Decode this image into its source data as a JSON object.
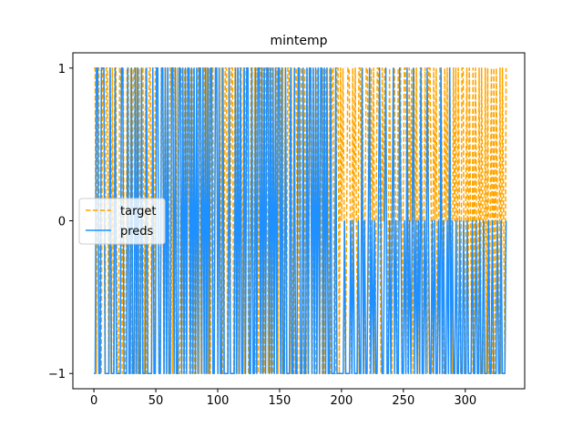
{
  "chart_data": {
    "type": "line",
    "title": "mintemp",
    "xlabel": "",
    "ylabel": "",
    "xlim": [
      -17,
      348
    ],
    "ylim": [
      -1.1,
      1.1
    ],
    "xticks": [
      0,
      50,
      100,
      150,
      200,
      250,
      300
    ],
    "yticks": [
      -1,
      0,
      1
    ],
    "grid": false,
    "legend_position": "center-left",
    "x_start": 0,
    "x_end": 333,
    "series": [
      {
        "name": "target",
        "color": "#ffa500",
        "style": "dashed",
        "values": [
          1,
          1,
          -1,
          1,
          1,
          -1,
          -1,
          1,
          1,
          -1,
          1,
          1,
          -1,
          1,
          -1,
          1,
          -1,
          1,
          1,
          -1,
          -1,
          1,
          1,
          -1,
          1,
          -1,
          -1,
          1,
          1,
          -1,
          1,
          -1,
          1,
          1,
          -1,
          1,
          -1,
          1,
          -1,
          1,
          1,
          -1,
          1,
          -1,
          -1,
          1,
          1,
          -1,
          1,
          -1,
          1,
          1,
          1,
          -1,
          -1,
          1,
          1,
          -1,
          1,
          -1,
          1,
          -1,
          1,
          1,
          -1,
          1,
          1,
          -1,
          1,
          -1,
          -1,
          1,
          1,
          -1,
          1,
          -1,
          1,
          1,
          -1,
          1,
          -1,
          1,
          -1,
          -1,
          1,
          1,
          -1,
          1,
          -1,
          1,
          1,
          -1,
          1,
          -1,
          1,
          -1,
          1,
          1,
          -1,
          1,
          1,
          -1,
          1,
          -1,
          1,
          -1,
          -1,
          1,
          1,
          -1,
          1,
          -1,
          1,
          1,
          -1,
          1,
          -1,
          1,
          -1,
          1,
          1,
          -1,
          1,
          -1,
          1,
          1,
          -1,
          -1,
          1,
          1,
          -1,
          1,
          -1,
          1,
          -1,
          1,
          1,
          -1,
          1,
          -1,
          1,
          1,
          -1,
          1,
          -1,
          1,
          -1,
          -1,
          1,
          1,
          -1,
          1,
          1,
          -1,
          1,
          -1,
          1,
          -1,
          1,
          1,
          -1,
          1,
          -1,
          -1,
          1,
          1,
          -1,
          1,
          -1,
          1,
          1,
          -1,
          1,
          -1,
          1,
          -1,
          1,
          1,
          -1,
          1,
          -1,
          -1,
          1,
          1,
          -1,
          1,
          -1,
          1,
          -1,
          1,
          1,
          -1,
          1,
          -1,
          1,
          1,
          -1,
          -1,
          1,
          1,
          -1,
          1,
          0,
          1,
          0,
          -1,
          0,
          1,
          1,
          0,
          -1,
          1,
          0,
          1,
          0,
          -1,
          1,
          1,
          0,
          1,
          -1,
          0,
          1,
          1,
          0,
          -1,
          1,
          0,
          1,
          -1,
          0,
          1,
          1,
          0,
          -1,
          1,
          0,
          1,
          1,
          -1,
          0,
          1,
          0,
          -1,
          1,
          1,
          0,
          -1,
          1,
          0,
          1,
          -1,
          0,
          1,
          1,
          0,
          -1,
          1,
          0,
          1,
          -1,
          1,
          0,
          1,
          -1,
          0,
          1,
          1,
          -1,
          0,
          1,
          0,
          -1,
          1,
          1,
          0,
          -1,
          1,
          0,
          1,
          -1,
          0,
          1,
          1,
          0,
          -1,
          1,
          0,
          1,
          -1,
          1,
          0,
          -1,
          1,
          0,
          1,
          -1,
          1,
          0,
          -1,
          1,
          1,
          -1,
          0,
          1,
          -1,
          1,
          0,
          -1,
          1,
          -1,
          1,
          0,
          -1,
          1,
          -1,
          1,
          0,
          -1,
          1,
          -1,
          1,
          -1,
          0,
          1,
          -1,
          1,
          -1,
          1,
          0,
          -1,
          1,
          -1,
          1,
          0,
          -1,
          1
        ]
      },
      {
        "name": "preds",
        "color": "#1e90ff",
        "style": "solid",
        "values": [
          -1,
          -1,
          1,
          1,
          -1,
          -1,
          1,
          1,
          1,
          -1,
          -1,
          -1,
          -1,
          1,
          -1,
          -1,
          -1,
          1,
          -1,
          -1,
          -1,
          -1,
          1,
          1,
          -1,
          -1,
          -1,
          1,
          -1,
          -1,
          1,
          -1,
          -1,
          1,
          -1,
          1,
          -1,
          -1,
          1,
          -1,
          -1,
          -1,
          1,
          -1,
          -1,
          -1,
          -1,
          1,
          -1,
          -1,
          1,
          1,
          -1,
          -1,
          1,
          1,
          -1,
          1,
          -1,
          1,
          -1,
          -1,
          1,
          1,
          -1,
          1,
          -1,
          -1,
          1,
          1,
          -1,
          1,
          -1,
          1,
          -1,
          1,
          1,
          -1,
          1,
          -1,
          1,
          -1,
          1,
          -1,
          1,
          1,
          -1,
          1,
          -1,
          1,
          -1,
          1,
          -1,
          1,
          1,
          -1,
          -1,
          1,
          1,
          -1,
          1,
          -1,
          -1,
          1,
          -1,
          -1,
          -1,
          -1,
          1,
          -1,
          -1,
          -1,
          -1,
          1,
          -1,
          1,
          -1,
          1,
          -1,
          -1,
          1,
          -1,
          1,
          1,
          -1,
          -1,
          1,
          -1,
          -1,
          1,
          -1,
          1,
          1,
          -1,
          1,
          -1,
          1,
          -1,
          1,
          1,
          -1,
          1,
          -1,
          1,
          -1,
          1,
          -1,
          1,
          1,
          -1,
          1,
          -1,
          -1,
          1,
          -1,
          -1,
          -1,
          1,
          -1,
          -1,
          1,
          -1,
          -1,
          1,
          1,
          -1,
          -1,
          1,
          -1,
          -1,
          1,
          -1,
          1,
          1,
          -1,
          1,
          -1,
          1,
          -1,
          1,
          -1,
          1,
          1,
          -1,
          1,
          -1,
          1,
          -1,
          -1,
          1,
          -1,
          -1,
          -1,
          1,
          -1,
          -1,
          -1,
          -1,
          -1,
          -1,
          0,
          -1,
          -1,
          -1,
          -1,
          0,
          -1,
          0,
          -1,
          -1,
          -1,
          0,
          -1,
          -1,
          1,
          -1,
          0,
          -1,
          -1,
          0,
          1,
          -1,
          0,
          -1,
          0,
          -1,
          -1,
          0,
          1,
          0,
          -1,
          -1,
          0,
          1,
          -1,
          -1,
          0,
          -1,
          0,
          1,
          -1,
          0,
          -1,
          -1,
          1,
          0,
          -1,
          -1,
          0,
          -1,
          1,
          -1,
          0,
          -1,
          0,
          1,
          -1,
          0,
          -1,
          0,
          -1,
          1,
          -1,
          -1,
          0,
          -1,
          1,
          0,
          -1,
          -1,
          0,
          -1,
          0,
          -1,
          -1,
          0,
          -1,
          1,
          -1,
          0,
          -1,
          -1,
          0,
          -1,
          1,
          -1,
          0,
          -1,
          -1,
          0,
          -1,
          -1,
          0,
          -1,
          -1,
          0,
          -1,
          -1,
          0,
          -1,
          -1,
          -1,
          0,
          -1,
          -1,
          0,
          -1,
          -1,
          0,
          -1,
          -1,
          0,
          -1,
          -1,
          -1,
          0,
          -1,
          -1,
          0,
          -1,
          -1,
          -1,
          0,
          -1,
          -1,
          0,
          -1,
          -1,
          -1,
          0
        ]
      }
    ]
  }
}
